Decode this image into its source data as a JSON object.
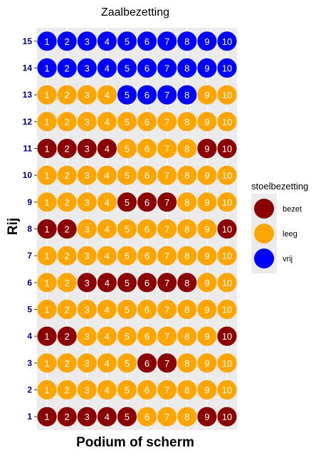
{
  "chart_data": {
    "type": "scatter",
    "title": "Zaalbezetting",
    "xlabel": "Podium of scherm",
    "ylabel": "Rij",
    "seats_per_row": [
      1,
      2,
      3,
      4,
      5,
      6,
      7,
      8,
      9,
      10
    ],
    "rows": [
      1,
      2,
      3,
      4,
      5,
      6,
      7,
      8,
      9,
      10,
      11,
      12,
      13,
      14,
      15
    ],
    "legend": {
      "title": "stoelbezetting",
      "entries": [
        {
          "key": "bezet",
          "label": "bezet",
          "color": "#8b0000"
        },
        {
          "key": "leeg",
          "label": "leeg",
          "color": "#ffa500"
        },
        {
          "key": "vrij",
          "label": "vrij",
          "color": "#0000ff"
        }
      ]
    },
    "occupancy": {
      "1": [
        "bezet",
        "bezet",
        "bezet",
        "bezet",
        "bezet",
        "leeg",
        "leeg",
        "leeg",
        "bezet",
        "bezet"
      ],
      "2": [
        "leeg",
        "leeg",
        "leeg",
        "leeg",
        "leeg",
        "leeg",
        "leeg",
        "leeg",
        "leeg",
        "leeg"
      ],
      "3": [
        "leeg",
        "leeg",
        "leeg",
        "leeg",
        "leeg",
        "bezet",
        "bezet",
        "leeg",
        "leeg",
        "leeg"
      ],
      "4": [
        "bezet",
        "bezet",
        "leeg",
        "leeg",
        "leeg",
        "leeg",
        "leeg",
        "leeg",
        "leeg",
        "bezet"
      ],
      "5": [
        "leeg",
        "leeg",
        "leeg",
        "leeg",
        "leeg",
        "leeg",
        "leeg",
        "leeg",
        "leeg",
        "leeg"
      ],
      "6": [
        "leeg",
        "leeg",
        "bezet",
        "bezet",
        "bezet",
        "bezet",
        "bezet",
        "bezet",
        "leeg",
        "leeg"
      ],
      "7": [
        "leeg",
        "leeg",
        "leeg",
        "leeg",
        "leeg",
        "leeg",
        "leeg",
        "leeg",
        "leeg",
        "leeg"
      ],
      "8": [
        "bezet",
        "bezet",
        "leeg",
        "leeg",
        "leeg",
        "leeg",
        "leeg",
        "leeg",
        "leeg",
        "bezet"
      ],
      "9": [
        "leeg",
        "leeg",
        "leeg",
        "leeg",
        "bezet",
        "bezet",
        "bezet",
        "leeg",
        "leeg",
        "leeg"
      ],
      "10": [
        "leeg",
        "leeg",
        "leeg",
        "leeg",
        "leeg",
        "leeg",
        "leeg",
        "leeg",
        "leeg",
        "leeg"
      ],
      "11": [
        "bezet",
        "bezet",
        "bezet",
        "bezet",
        "leeg",
        "leeg",
        "leeg",
        "leeg",
        "bezet",
        "bezet"
      ],
      "12": [
        "leeg",
        "leeg",
        "leeg",
        "leeg",
        "leeg",
        "leeg",
        "leeg",
        "leeg",
        "leeg",
        "leeg"
      ],
      "13": [
        "leeg",
        "leeg",
        "leeg",
        "leeg",
        "vrij",
        "vrij",
        "vrij",
        "vrij",
        "leeg",
        "leeg"
      ],
      "14": [
        "vrij",
        "vrij",
        "vrij",
        "vrij",
        "vrij",
        "vrij",
        "vrij",
        "vrij",
        "vrij",
        "vrij"
      ],
      "15": [
        "vrij",
        "vrij",
        "vrij",
        "vrij",
        "vrij",
        "vrij",
        "vrij",
        "vrij",
        "vrij",
        "vrij"
      ]
    },
    "xlim": [
      0.5,
      10.5
    ],
    "ylim": [
      0.5,
      15.5
    ],
    "grid": true,
    "legend_position": "right",
    "panel_background": "#ebebeb",
    "grid_color": "#ffffff",
    "y_tick_color": "#000080"
  }
}
